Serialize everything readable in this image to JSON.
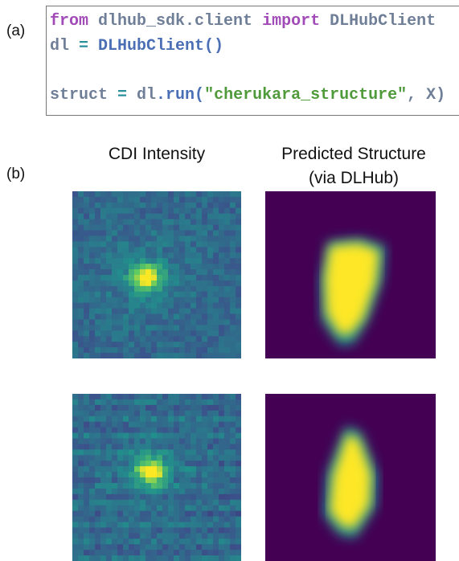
{
  "panel_a": {
    "label": "(a)",
    "code": {
      "lines": [
        {
          "tokens": [
            {
              "text": "from",
              "color": "#a24bb8"
            },
            {
              "text": " dlhub_sdk.client ",
              "color": "#6f7f98"
            },
            {
              "text": "import",
              "color": "#a24bb8"
            },
            {
              "text": " DLHubClient",
              "color": "#6f7f98"
            }
          ]
        },
        {
          "tokens": [
            {
              "text": "dl",
              "color": "#6f7f98"
            },
            {
              "text": " = ",
              "color": "#2b8f9c"
            },
            {
              "text": "DLHubClient()",
              "color": "#4b6fb5"
            }
          ]
        },
        {
          "tokens": []
        },
        {
          "tokens": [
            {
              "text": "struct",
              "color": "#6f7f98"
            },
            {
              "text": " = ",
              "color": "#2b8f9c"
            },
            {
              "text": "dl",
              "color": "#6f7f98"
            },
            {
              "text": ".run(",
              "color": "#4b6fb5"
            },
            {
              "text": "\"cherukara_structure\"",
              "color": "#4f9a3a"
            },
            {
              "text": ", X)",
              "color": "#6f7f98"
            }
          ]
        }
      ]
    }
  },
  "panel_b": {
    "label": "(b)",
    "columns": [
      {
        "title": "CDI Intensity"
      },
      {
        "title": "Predicted Structure",
        "subtitle": "(via DLHub)"
      }
    ]
  }
}
